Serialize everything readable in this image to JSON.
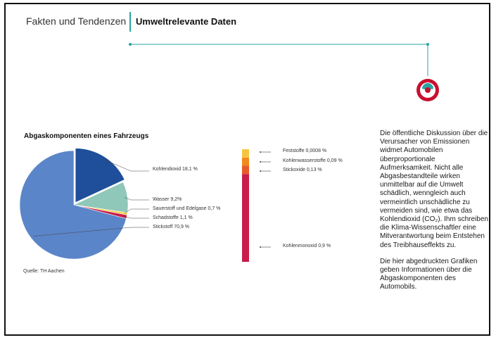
{
  "header": {
    "section": "Fakten und Tendenzen",
    "title": "Umweltrelevante Daten"
  },
  "chart_title": "Abgaskomponenten eines Fahrzeugs",
  "source": "Quelle: TH Aachen",
  "body": {
    "paragraph1": "Die öffentliche Diskussion über die Verursacher von Emissionen widmet Automobilen überproportionale Aufmerksamkeit. Nicht alle Abgasbestandteile wirken unmittelbar auf die Umwelt schädlich, wenngleich auch vermeintlich unschädliche zu vermeiden sind, wie etwa das Kohlendioxid (CO₂). Ihm schreiben die Klima-Wissenschaftler eine Mitverantwortung beim Entstehen des Treibhauseffekts zu.",
    "paragraph2": "Die hier abgedruckten Grafiken geben Informationen über die Abgaskomponenten des Automobils."
  },
  "colors": {
    "accent": "#2aa3a0",
    "logo_red": "#c8102e"
  },
  "chart_data": [
    {
      "type": "pie",
      "title": "Abgaskomponenten eines Fahrzeugs",
      "slices": [
        {
          "label": "Kohlendioxid 18,1 %",
          "value": 18.1,
          "color": "#1f4e9a"
        },
        {
          "label": "Wasser 9,2%",
          "value": 9.2,
          "color": "#8fc7b8"
        },
        {
          "label": "Sauerstoff und Edelgase 0,7 %",
          "value": 0.7,
          "color": "#f2d24a"
        },
        {
          "label": "Schadstoffe 1,1 %",
          "value": 1.1,
          "color": "#c81d4b"
        },
        {
          "label": "Stickstoff 70,9 %",
          "value": 70.9,
          "color": "#5b85c9"
        }
      ]
    },
    {
      "type": "bar",
      "stacked": true,
      "segments": [
        {
          "label": "Kohlenmonoxid 0,9 %",
          "value": 0.9,
          "color": "#c81d4b"
        },
        {
          "label": "Stickoxide 0,13 %",
          "value": 0.13,
          "color": "#e85a2a"
        },
        {
          "label": "Kohlenwasserstoffe 0,09 %",
          "value": 0.09,
          "color": "#f08a1c"
        },
        {
          "label": "Feststoffe 0,0008 %",
          "value": 0.0008,
          "color": "#f5c542"
        }
      ]
    }
  ]
}
